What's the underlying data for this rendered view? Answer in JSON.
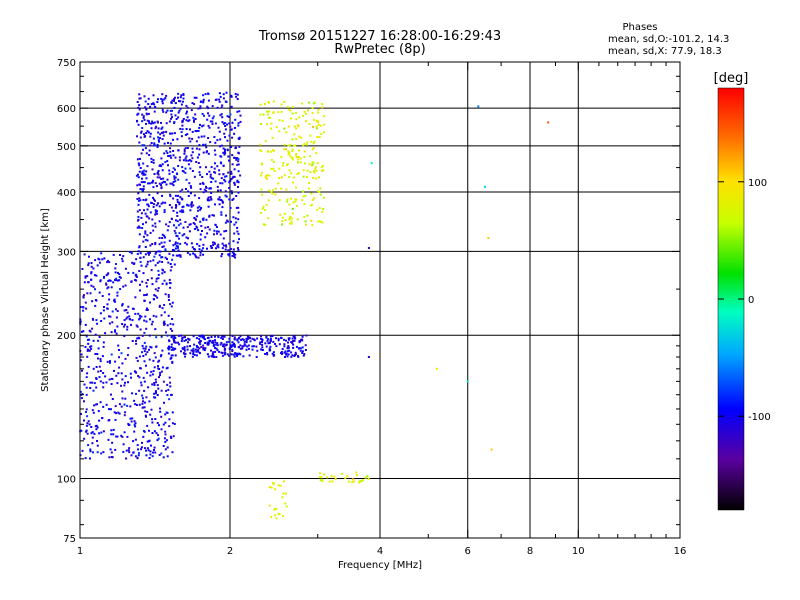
{
  "chart_data": {
    "type": "scatter",
    "title": "Tromsø 20151227 16:28:00-16:29:43",
    "subtitle": "RwPretec (8p)",
    "xlabel": "Frequency [MHz]",
    "ylabel": "Stationary phase Virtual Height [km]",
    "x_scale": "log",
    "y_scale": "log",
    "xlim": [
      1,
      16
    ],
    "ylim": [
      75,
      750
    ],
    "x_ticks": [
      1,
      2,
      4,
      6,
      8,
      10,
      16
    ],
    "y_ticks": [
      75,
      100,
      200,
      300,
      400,
      500,
      600,
      750
    ],
    "x_grid": [
      2,
      4,
      6,
      8,
      10
    ],
    "y_grid": [
      100,
      200,
      300,
      400,
      500,
      600
    ],
    "grid": true,
    "phases_note": {
      "header": "Phases",
      "line1": "mean, sd,O:-101.2, 14.3",
      "line2": "mean, sd,X:  77.9, 18.3"
    },
    "colorbar": {
      "label": "[deg]",
      "range": [
        -180,
        180
      ],
      "ticks": [
        "100",
        "0",
        "-100"
      ],
      "tick_values": [
        100,
        0,
        -100
      ]
    },
    "clusters": [
      {
        "name": "o-trace-low",
        "x_range": [
          1.0,
          1.55
        ],
        "y_range": [
          110,
          300
        ],
        "phase_mean": -101,
        "phase_sd": 14,
        "count": 700
      },
      {
        "name": "o-trace-F",
        "x_range": [
          1.3,
          2.1
        ],
        "y_range": [
          290,
          650
        ],
        "phase_mean": -101,
        "phase_sd": 14,
        "count": 900
      },
      {
        "name": "o-trace-E",
        "x_range": [
          1.5,
          2.85
        ],
        "y_range": [
          180,
          200
        ],
        "phase_mean": -101,
        "phase_sd": 14,
        "count": 350
      },
      {
        "name": "x-trace-F",
        "x_range": [
          2.3,
          3.1
        ],
        "y_range": [
          340,
          620
        ],
        "phase_mean": 78,
        "phase_sd": 18,
        "count": 260
      },
      {
        "name": "x-trace-E",
        "x_range": [
          3.0,
          3.8
        ],
        "y_range": [
          98,
          103
        ],
        "phase_mean": 78,
        "phase_sd": 18,
        "count": 30
      },
      {
        "name": "x-low",
        "x_range": [
          2.4,
          2.6
        ],
        "y_range": [
          82,
          100
        ],
        "phase_mean": 78,
        "phase_sd": 18,
        "count": 25
      }
    ],
    "isolated_points": [
      {
        "x": 8.7,
        "y": 560,
        "phase": 150
      },
      {
        "x": 6.6,
        "y": 320,
        "phase": 110
      },
      {
        "x": 6.7,
        "y": 115,
        "phase": 110
      },
      {
        "x": 6.0,
        "y": 160,
        "phase": -20
      },
      {
        "x": 6.5,
        "y": 410,
        "phase": -30
      },
      {
        "x": 6.3,
        "y": 605,
        "phase": -60
      },
      {
        "x": 5.2,
        "y": 170,
        "phase": 100
      },
      {
        "x": 3.8,
        "y": 305,
        "phase": -110
      },
      {
        "x": 3.8,
        "y": 180,
        "phase": -110
      },
      {
        "x": 3.85,
        "y": 460,
        "phase": -10
      }
    ]
  }
}
